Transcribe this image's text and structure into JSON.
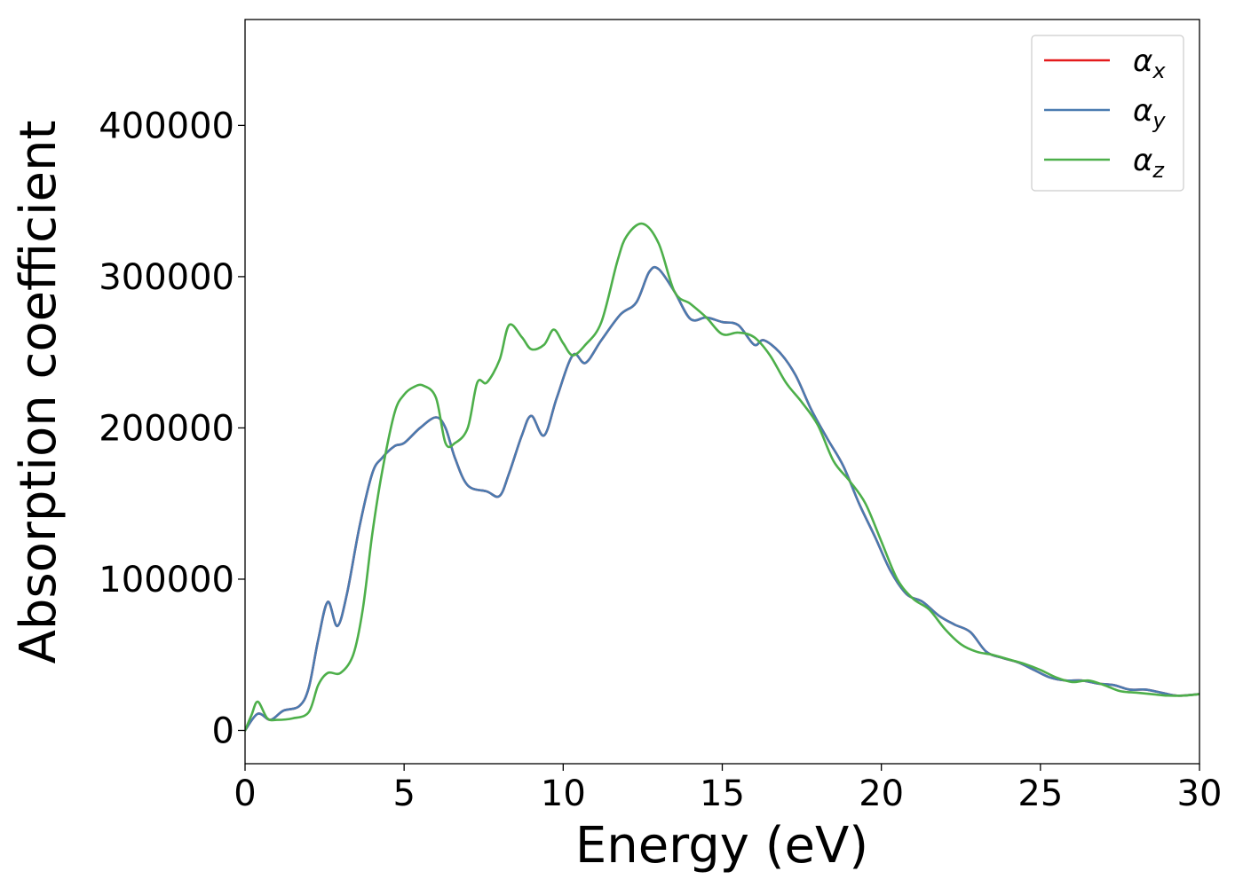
{
  "chart_data": {
    "type": "line",
    "title": "",
    "xlabel": "Energy (eV)",
    "ylabel": "Absorption coefficient",
    "xlim": [
      0,
      30
    ],
    "ylim": [
      -22000,
      470000
    ],
    "xticks": [
      0,
      5,
      10,
      15,
      20,
      25,
      30
    ],
    "yticks": [
      0,
      100000,
      200000,
      300000,
      400000
    ],
    "grid": false,
    "legend_position": "top-right",
    "series": [
      {
        "name": "α",
        "subscript": "x",
        "color": "#e41a1c",
        "x": [
          0,
          0.4,
          0.8,
          1.2,
          1.7,
          2.0,
          2.3,
          2.6,
          2.9,
          3.2,
          3.6,
          4.0,
          4.3,
          4.7,
          5.0,
          5.5,
          6.0,
          6.3,
          6.6,
          7.0,
          7.6,
          8.0,
          8.3,
          8.7,
          9.0,
          9.4,
          9.8,
          10.3,
          10.7,
          11.2,
          11.8,
          12.3,
          12.7,
          13.0,
          13.5,
          14.0,
          14.5,
          15.0,
          15.5,
          16.0,
          16.3,
          16.8,
          17.3,
          17.8,
          18.3,
          18.8,
          19.3,
          19.8,
          20.3,
          20.8,
          21.3,
          21.8,
          22.3,
          22.8,
          23.3,
          23.8,
          24.3,
          24.8,
          25.3,
          25.8,
          26.3,
          26.8,
          27.3,
          27.8,
          28.3,
          28.8,
          29.3,
          30.0
        ],
        "y": [
          0,
          11000,
          7000,
          13000,
          16000,
          28000,
          60000,
          85000,
          69000,
          90000,
          135000,
          170000,
          180000,
          188000,
          190000,
          200000,
          207000,
          200000,
          180000,
          162000,
          158000,
          155000,
          170000,
          195000,
          208000,
          195000,
          220000,
          248000,
          243000,
          258000,
          275000,
          283000,
          303000,
          305000,
          290000,
          272000,
          273000,
          270000,
          268000,
          255000,
          258000,
          250000,
          235000,
          212000,
          193000,
          175000,
          150000,
          128000,
          105000,
          90000,
          85000,
          76000,
          70000,
          65000,
          52000,
          48000,
          45000,
          40000,
          35000,
          33000,
          33000,
          31000,
          30000,
          27000,
          27000,
          25000,
          23000,
          24000
        ]
      },
      {
        "name": "α",
        "subscript": "y",
        "color": "#4a7bb0",
        "x": [
          0,
          0.4,
          0.8,
          1.2,
          1.7,
          2.0,
          2.3,
          2.6,
          2.9,
          3.2,
          3.6,
          4.0,
          4.3,
          4.7,
          5.0,
          5.5,
          6.0,
          6.3,
          6.6,
          7.0,
          7.6,
          8.0,
          8.3,
          8.7,
          9.0,
          9.4,
          9.8,
          10.3,
          10.7,
          11.2,
          11.8,
          12.3,
          12.7,
          13.0,
          13.5,
          14.0,
          14.5,
          15.0,
          15.5,
          16.0,
          16.3,
          16.8,
          17.3,
          17.8,
          18.3,
          18.8,
          19.3,
          19.8,
          20.3,
          20.8,
          21.3,
          21.8,
          22.3,
          22.8,
          23.3,
          23.8,
          24.3,
          24.8,
          25.3,
          25.8,
          26.3,
          26.8,
          27.3,
          27.8,
          28.3,
          28.8,
          29.3,
          30.0
        ],
        "y": [
          0,
          11000,
          7000,
          13000,
          16000,
          28000,
          60000,
          85000,
          69000,
          90000,
          135000,
          170000,
          180000,
          188000,
          190000,
          200000,
          207000,
          200000,
          180000,
          162000,
          158000,
          155000,
          170000,
          195000,
          208000,
          195000,
          220000,
          248000,
          243000,
          258000,
          275000,
          283000,
          303000,
          305000,
          290000,
          272000,
          273000,
          270000,
          268000,
          255000,
          258000,
          250000,
          235000,
          212000,
          193000,
          175000,
          150000,
          128000,
          105000,
          90000,
          85000,
          76000,
          70000,
          65000,
          52000,
          48000,
          45000,
          40000,
          35000,
          33000,
          33000,
          31000,
          30000,
          27000,
          27000,
          25000,
          23000,
          24000
        ]
      },
      {
        "name": "α",
        "subscript": "z",
        "color": "#4daf4a",
        "x": [
          0,
          0.2,
          0.4,
          0.7,
          1.0,
          1.5,
          2.0,
          2.3,
          2.6,
          3.0,
          3.4,
          3.7,
          4.0,
          4.3,
          4.7,
          5.0,
          5.3,
          5.6,
          6.0,
          6.3,
          6.6,
          7.0,
          7.3,
          7.6,
          8.0,
          8.3,
          8.7,
          9.0,
          9.4,
          9.7,
          10.0,
          10.3,
          10.7,
          11.2,
          11.7,
          12.0,
          12.5,
          13.0,
          13.5,
          14.0,
          14.5,
          15.0,
          15.5,
          16.0,
          16.5,
          17.0,
          17.5,
          18.0,
          18.5,
          19.0,
          19.5,
          20.0,
          20.5,
          21.0,
          21.5,
          22.0,
          22.5,
          23.0,
          23.5,
          24.0,
          24.5,
          25.0,
          25.5,
          26.0,
          26.5,
          27.0,
          27.5,
          28.0,
          28.5,
          29.0,
          29.5,
          30.0
        ],
        "y": [
          0,
          10000,
          19000,
          8000,
          7000,
          8000,
          12000,
          30000,
          38000,
          38000,
          50000,
          80000,
          130000,
          170000,
          210000,
          222000,
          227000,
          228000,
          220000,
          190000,
          190000,
          200000,
          230000,
          230000,
          245000,
          268000,
          260000,
          252000,
          255000,
          265000,
          256000,
          248000,
          255000,
          270000,
          310000,
          327000,
          335000,
          322000,
          290000,
          282000,
          273000,
          262000,
          263000,
          260000,
          248000,
          230000,
          217000,
          202000,
          178000,
          165000,
          150000,
          125000,
          100000,
          87000,
          80000,
          67000,
          57000,
          52000,
          50000,
          47000,
          44000,
          40000,
          35000,
          32000,
          33000,
          30000,
          26000,
          25000,
          24000,
          23000,
          23000,
          24000
        ]
      }
    ]
  }
}
